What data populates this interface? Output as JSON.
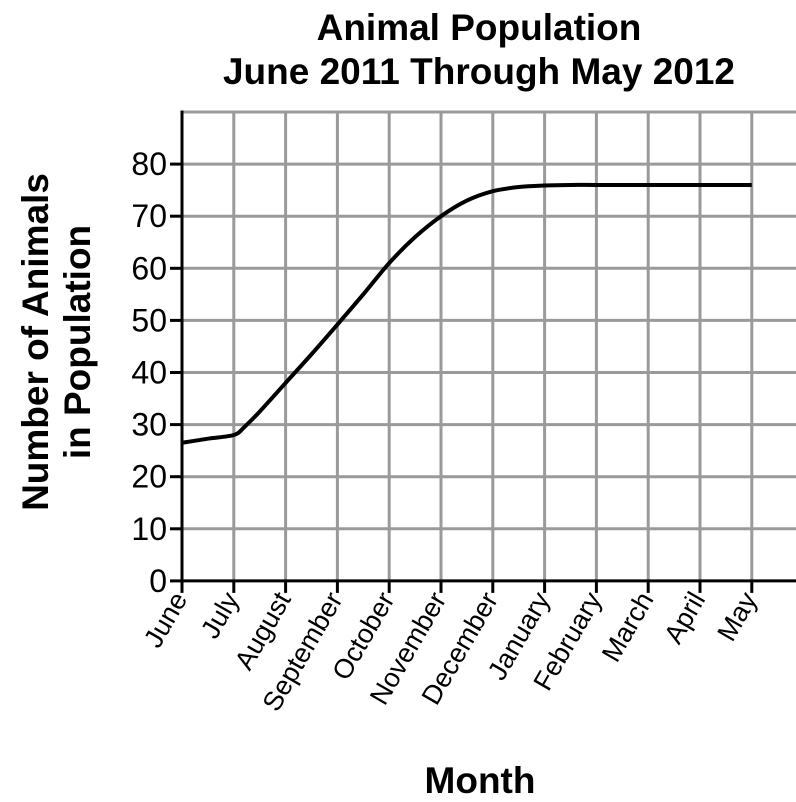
{
  "chart_data": {
    "type": "line",
    "title": "Animal Population",
    "subtitle": "June 2011 Through May 2012",
    "xlabel": "Month",
    "ylabel": [
      "Number of Animals",
      "in Population"
    ],
    "categories": [
      "June",
      "July",
      "August",
      "September",
      "October",
      "November",
      "December",
      "January",
      "February",
      "March",
      "April",
      "May"
    ],
    "y_ticks": [
      "0",
      "10",
      "20",
      "30",
      "40",
      "50",
      "60",
      "70",
      "80"
    ],
    "ylim": [
      0,
      90
    ],
    "grid": true,
    "series": [
      {
        "x": [
          0,
          0.5,
          1,
          1.2,
          1.5,
          2,
          2.5,
          3,
          3.5,
          4,
          4.5,
          5,
          5.5,
          6,
          6.5,
          7,
          7.5,
          8,
          9,
          10,
          11
        ],
        "values": [
          26.5,
          27.3,
          28.0,
          29.5,
          32.5,
          38.0,
          43.5,
          49.2,
          55.0,
          61.0,
          66.0,
          70.0,
          73.0,
          74.8,
          75.6,
          75.9,
          76.0,
          76.0,
          76.0,
          76.0,
          76.0
        ]
      }
    ],
    "colors": {
      "line": "#000000",
      "grid": "#9a9a9a",
      "axis": "#000000"
    }
  }
}
